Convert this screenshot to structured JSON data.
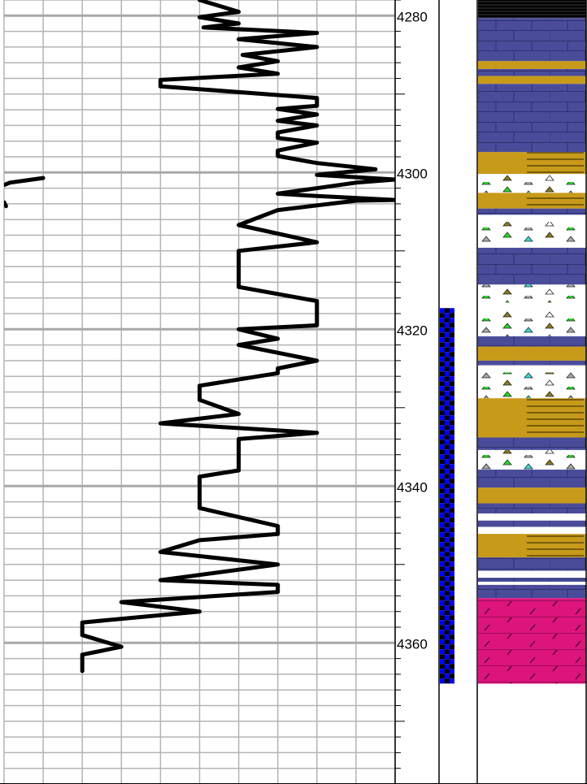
{
  "chart_data": {
    "type": "line",
    "title": "",
    "xlabel": "",
    "ylabel": "",
    "depth_range": [
      4278.0,
      4378.0
    ],
    "depth_tick_labels": [
      "4280",
      "4300",
      "4320",
      "4340",
      "4360"
    ],
    "minor_depth_step": 2,
    "major_depth_step": 20,
    "track_x_range": [
      0,
      10
    ],
    "grid": true,
    "series": [
      {
        "color": "#000000",
        "points": [
          [
            5.0,
            4278.0
          ],
          [
            6.0,
            4279.5
          ],
          [
            5.0,
            4280.2
          ],
          [
            6.0,
            4281.0
          ],
          [
            5.1,
            4281.5
          ],
          [
            8.0,
            4282.2
          ],
          [
            6.0,
            4283.0
          ],
          [
            8.0,
            4284.0
          ],
          [
            6.1,
            4285.0
          ],
          [
            7.0,
            4285.8
          ],
          [
            6.0,
            4286.6
          ],
          [
            7.0,
            4287.4
          ],
          [
            4.0,
            4288.2
          ],
          [
            4.0,
            4289.0
          ],
          [
            8.0,
            4290.5
          ],
          [
            8.0,
            4291.5
          ],
          [
            7.0,
            4291.9
          ],
          [
            8.0,
            4292.6
          ],
          [
            7.0,
            4293.4
          ],
          [
            8.0,
            4294.0
          ],
          [
            7.0,
            4294.9
          ],
          [
            7.0,
            4295.6
          ],
          [
            8.0,
            4296.2
          ],
          [
            7.0,
            4297.2
          ],
          [
            7.0,
            4297.9
          ],
          [
            8.0,
            4298.8
          ],
          [
            9.5,
            4299.6
          ],
          [
            8.0,
            4300.3
          ],
          [
            10.0,
            4300.9
          ],
          [
            9.0,
            4301.3
          ],
          [
            7.0,
            4302.7
          ],
          [
            8.0,
            4303.0
          ],
          [
            10.0,
            4303.5
          ],
          [
            9.0,
            4303.6
          ],
          [
            7.0,
            4304.8
          ],
          [
            6.0,
            4306.7
          ],
          [
            8.0,
            4308.9
          ],
          [
            6.0,
            4310.0
          ],
          [
            6.0,
            4314.6
          ],
          [
            8.0,
            4316.4
          ],
          [
            8.0,
            4319.5
          ],
          [
            6.0,
            4320.0
          ],
          [
            7.0,
            4321.2
          ],
          [
            6.0,
            4322.0
          ],
          [
            8.0,
            4324.0
          ],
          [
            7.0,
            4325.0
          ],
          [
            7.0,
            4325.6
          ],
          [
            5.0,
            4327.2
          ],
          [
            5.0,
            4329.0
          ],
          [
            6.0,
            4330.8
          ],
          [
            4.0,
            4332.0
          ],
          [
            8.0,
            4333.2
          ],
          [
            6.0,
            4334.0
          ],
          [
            6.0,
            4338.0
          ],
          [
            5.0,
            4338.8
          ],
          [
            5.0,
            4342.8
          ],
          [
            7.0,
            4345.1
          ],
          [
            7.0,
            4346.1
          ],
          [
            5.0,
            4346.9
          ],
          [
            4.0,
            4348.4
          ],
          [
            7.0,
            4350.0
          ],
          [
            4.0,
            4352.0
          ],
          [
            7.0,
            4352.6
          ],
          [
            7.0,
            4353.5
          ],
          [
            3.0,
            4354.8
          ],
          [
            5.0,
            4356.0
          ],
          [
            2.0,
            4357.4
          ],
          [
            2.0,
            4359.0
          ],
          [
            3.0,
            4360.5
          ],
          [
            2.0,
            4361.5
          ],
          [
            2.0,
            4363.6
          ]
        ]
      },
      {
        "color": "#000000",
        "points": [
          [
            1.0,
            4300.7
          ],
          [
            0.15,
            4301.3
          ],
          [
            0.0,
            4301.6
          ]
        ]
      },
      {
        "color": "#000000",
        "points": [
          [
            0.0,
            4303.8
          ],
          [
            0.05,
            4304.3
          ]
        ]
      }
    ],
    "sample_interval_track": {
      "top_depth": 4317.3,
      "base_depth": 4365.2,
      "colors": [
        "#0000ff",
        "#000000"
      ]
    },
    "lithology": [
      {
        "top": 4278.0,
        "base": 4280.3,
        "type": "coal"
      },
      {
        "top": 4280.3,
        "base": 4285.8,
        "type": "limestone"
      },
      {
        "top": 4285.8,
        "base": 4286.8,
        "type": "sandstone"
      },
      {
        "top": 4286.8,
        "base": 4287.7,
        "type": "limestone"
      },
      {
        "top": 4287.7,
        "base": 4288.7,
        "type": "sandstone"
      },
      {
        "top": 4288.7,
        "base": 4297.4,
        "type": "limestone"
      },
      {
        "top": 4297.4,
        "base": 4300.2,
        "type": "shaly-sandstone"
      },
      {
        "top": 4300.2,
        "base": 4302.6,
        "type": "conglomerate"
      },
      {
        "top": 4302.6,
        "base": 4304.6,
        "type": "shaly-sandstone"
      },
      {
        "top": 4304.6,
        "base": 4305.4,
        "type": "limestone"
      },
      {
        "top": 4305.4,
        "base": 4306.3,
        "type": "blank"
      },
      {
        "top": 4306.3,
        "base": 4308.9,
        "type": "conglomerate"
      },
      {
        "top": 4308.9,
        "base": 4309.6,
        "type": "blank"
      },
      {
        "top": 4309.6,
        "base": 4314.3,
        "type": "limestone"
      },
      {
        "top": 4314.3,
        "base": 4316.6,
        "type": "conglomerate"
      },
      {
        "top": 4316.6,
        "base": 4317.6,
        "type": "blank"
      },
      {
        "top": 4317.6,
        "base": 4320.9,
        "type": "conglomerate"
      },
      {
        "top": 4320.9,
        "base": 4322.2,
        "type": "limestone"
      },
      {
        "top": 4322.2,
        "base": 4324.0,
        "type": "sandstone"
      },
      {
        "top": 4324.0,
        "base": 4324.6,
        "type": "limestone"
      },
      {
        "top": 4324.6,
        "base": 4325.5,
        "type": "blank"
      },
      {
        "top": 4325.5,
        "base": 4328.8,
        "type": "conglomerate"
      },
      {
        "top": 4328.8,
        "base": 4333.8,
        "type": "shaly-sandstone"
      },
      {
        "top": 4333.8,
        "base": 4335.4,
        "type": "limestone"
      },
      {
        "top": 4335.4,
        "base": 4337.9,
        "type": "conglomerate"
      },
      {
        "top": 4337.9,
        "base": 4340.2,
        "type": "limestone"
      },
      {
        "top": 4340.2,
        "base": 4342.2,
        "type": "sandstone"
      },
      {
        "top": 4342.2,
        "base": 4343.5,
        "type": "limestone"
      },
      {
        "top": 4343.5,
        "base": 4344.4,
        "type": "blank"
      },
      {
        "top": 4344.4,
        "base": 4345.2,
        "type": "limestone"
      },
      {
        "top": 4345.2,
        "base": 4346.1,
        "type": "blank"
      },
      {
        "top": 4346.1,
        "base": 4349.1,
        "type": "shaly-sandstone"
      },
      {
        "top": 4349.1,
        "base": 4350.8,
        "type": "limestone"
      },
      {
        "top": 4350.8,
        "base": 4351.7,
        "type": "blank"
      },
      {
        "top": 4351.7,
        "base": 4352.2,
        "type": "limestone"
      },
      {
        "top": 4352.2,
        "base": 4352.6,
        "type": "blank"
      },
      {
        "top": 4352.6,
        "base": 4354.3,
        "type": "limestone"
      },
      {
        "top": 4354.3,
        "base": 4365.2,
        "type": "dolomite"
      }
    ],
    "lithology_colors": {
      "limestone": "#4a4c9a",
      "sandstone": "#c89a1a",
      "shaly-sandstone": "#c89a1a",
      "dolomite": "#de147d",
      "coal": "#000000",
      "conglomerate": "#ffffff",
      "blank": "#ffffff"
    }
  }
}
